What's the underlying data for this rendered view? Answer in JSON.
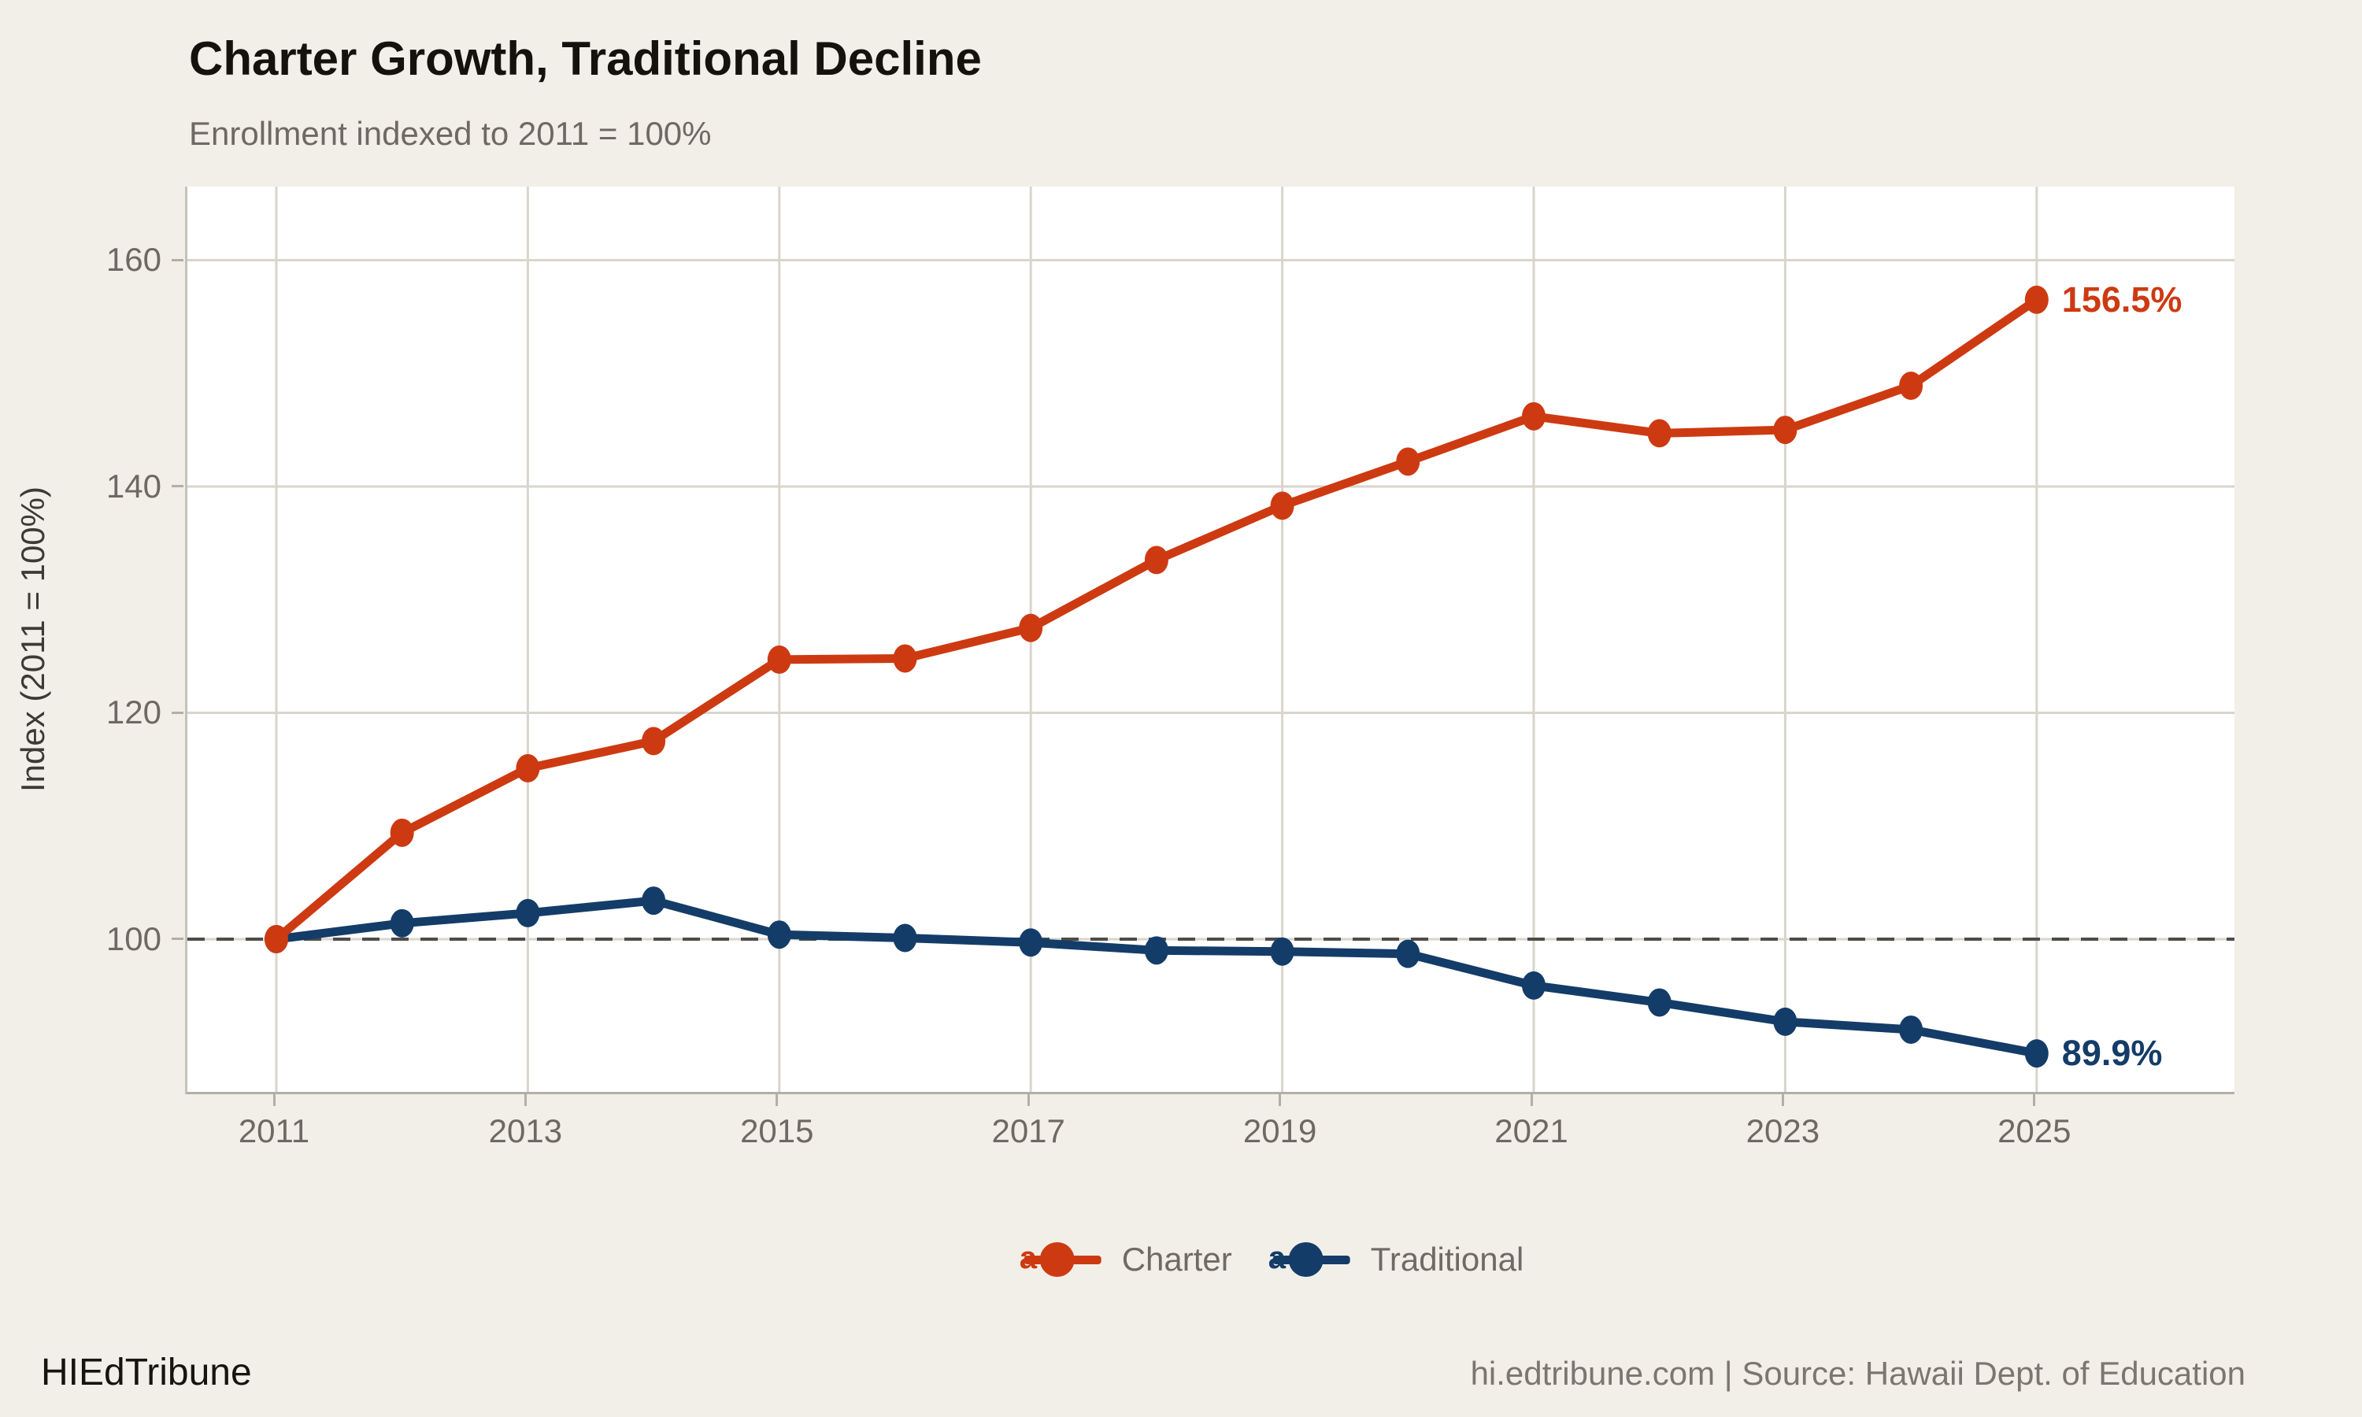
{
  "header": {
    "title": "Charter Growth, Traditional Decline",
    "subtitle": "Enrollment indexed to 2011 = 100%"
  },
  "chart_data": {
    "type": "line",
    "x": [
      2011,
      2012,
      2013,
      2014,
      2015,
      2016,
      2017,
      2018,
      2019,
      2020,
      2021,
      2022,
      2023,
      2024,
      2025
    ],
    "series": [
      {
        "name": "Charter",
        "color": "#cd3a12",
        "values": [
          100,
          109.4,
          115.1,
          117.5,
          124.7,
          124.8,
          127.5,
          133.5,
          138.3,
          142.2,
          146.2,
          144.7,
          145.0,
          148.9,
          156.5
        ],
        "end_label": "156.5%"
      },
      {
        "name": "Traditional",
        "color": "#143c68",
        "values": [
          100,
          101.4,
          102.3,
          103.4,
          100.4,
          100.1,
          99.7,
          99.0,
          98.9,
          98.7,
          95.9,
          94.4,
          92.7,
          92.0,
          89.9
        ],
        "end_label": "89.9%"
      }
    ],
    "title": "Charter Growth, Traditional Decline",
    "subtitle": "Enrollment indexed to 2011 = 100%",
    "xlabel": "",
    "ylabel": "Index (2011 = 100%)",
    "yticks": [
      100,
      120,
      140,
      160
    ],
    "xticks": [
      2011,
      2013,
      2015,
      2017,
      2019,
      2021,
      2023,
      2025
    ],
    "ylim": [
      86.5,
      166.5
    ],
    "reference_line": 100,
    "grid": true,
    "legend_position": "bottom"
  },
  "legend": {
    "items": [
      {
        "key_letter": "a",
        "label": "Charter",
        "color": "#cd3a12"
      },
      {
        "key_letter": "a",
        "label": "Traditional",
        "color": "#143c68"
      }
    ]
  },
  "footer": {
    "brand": "HIEdTribune",
    "source": "hi.edtribune.com | Source: Hawaii Dept. of Education"
  },
  "colors": {
    "background": "#f2efe9",
    "panel": "#ffffff",
    "gridline": "#d9d5cc",
    "axis_line": "#b4afa5",
    "reference_dash": "#4f4b47",
    "tick_text": "#6e6962"
  }
}
